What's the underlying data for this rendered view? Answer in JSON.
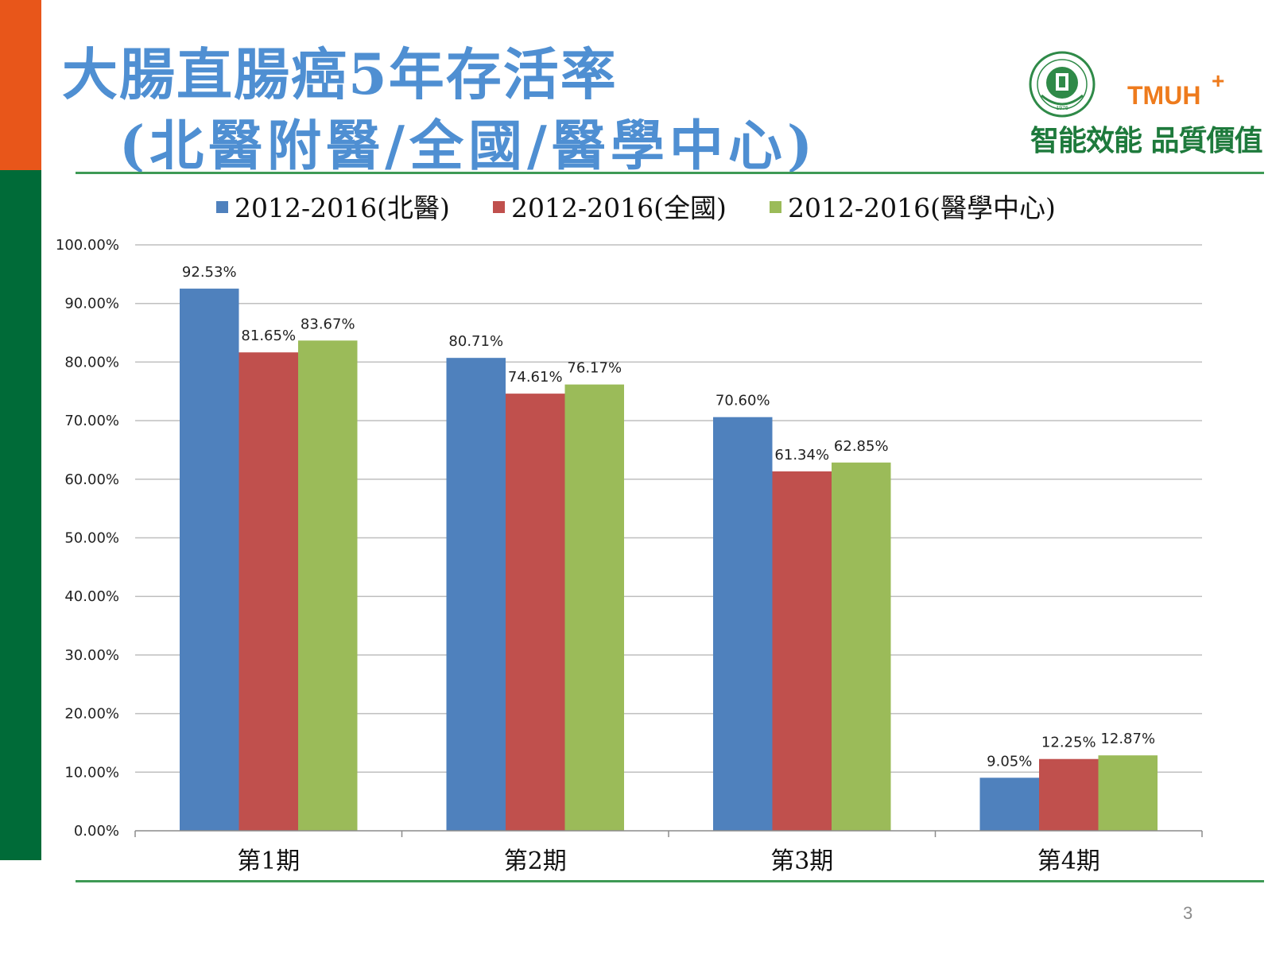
{
  "slide": {
    "title_line1": "大腸直腸癌5年存活率",
    "title_line2": "(北醫附醫/全國/醫學中心)",
    "page_number": "3"
  },
  "logo": {
    "text": "TMUH",
    "plus": "+",
    "slogan": "智能效能 品質價值",
    "seal_year": "1976",
    "icon": "hospital-seal-icon"
  },
  "colors": {
    "accent_orange": "#E8561A",
    "accent_green": "#006B38",
    "title_blue": "#4F8FD2"
  },
  "chart_data": {
    "type": "bar",
    "categories": [
      "第1期",
      "第2期",
      "第3期",
      "第4期"
    ],
    "series": [
      {
        "name": "2012-2016(北醫)",
        "color": "#4F81BD",
        "values": [
          92.53,
          80.71,
          70.6,
          9.05
        ],
        "labels": [
          "92.53%",
          "80.71%",
          "70.60%",
          "9.05%"
        ]
      },
      {
        "name": "2012-2016(全國)",
        "color": "#C0504D",
        "values": [
          81.65,
          74.61,
          61.34,
          12.25
        ],
        "labels": [
          "81.65%",
          "74.61%",
          "61.34%",
          "12.25%"
        ]
      },
      {
        "name": "2012-2016(醫學中心)",
        "color": "#9BBB59",
        "values": [
          83.67,
          76.17,
          62.85,
          12.87
        ],
        "labels": [
          "83.67%",
          "76.17%",
          "62.85%",
          "12.87%"
        ]
      }
    ],
    "y_ticks": [
      "0.00%",
      "10.00%",
      "20.00%",
      "30.00%",
      "40.00%",
      "50.00%",
      "60.00%",
      "70.00%",
      "80.00%",
      "90.00%",
      "100.00%"
    ],
    "ylim": [
      0,
      100
    ],
    "legend_position": "top",
    "grid": true
  }
}
